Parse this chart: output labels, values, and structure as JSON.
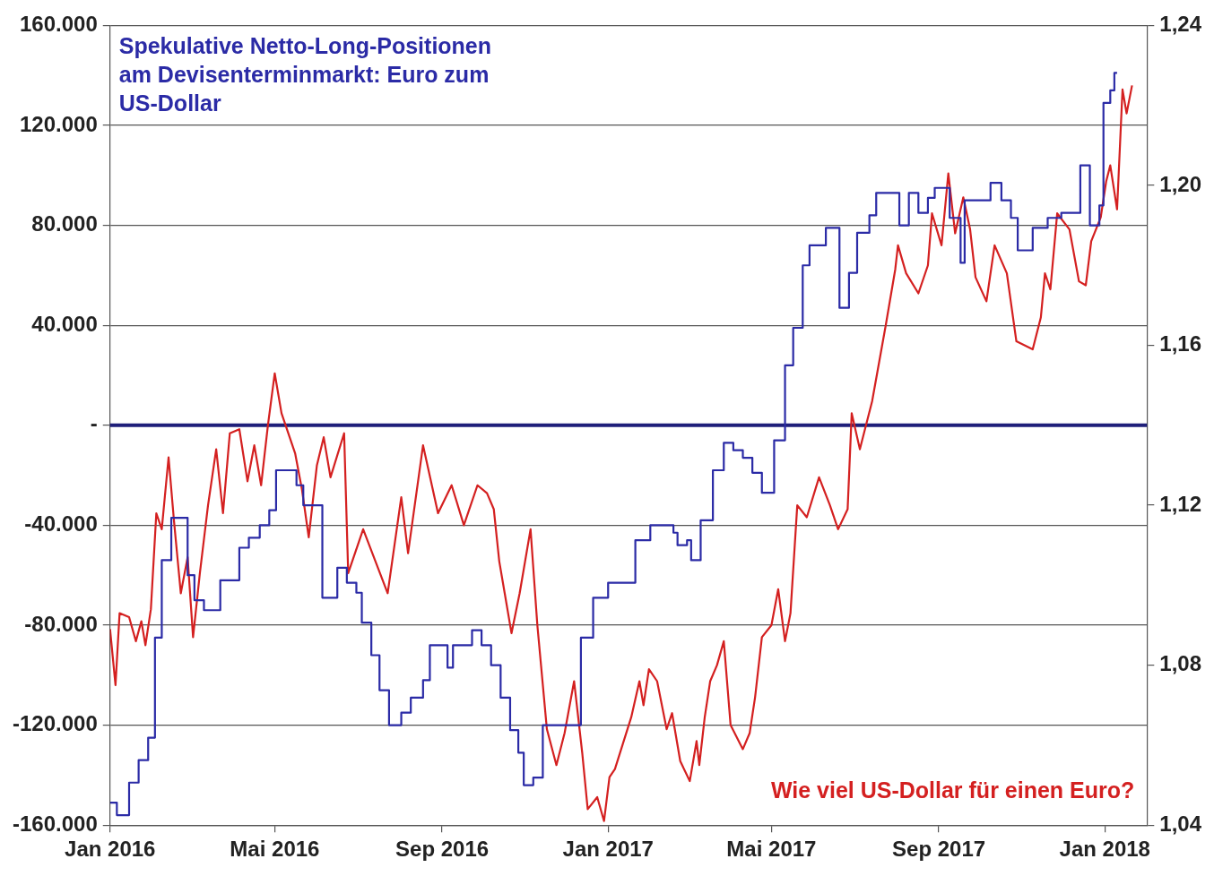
{
  "chart_data": {
    "type": "line",
    "xlim": [
      "2016-01-01",
      "2018-02-01"
    ],
    "xticks": [
      {
        "value": "2016-01-01",
        "label": "Jan 2016"
      },
      {
        "value": "2016-05-01",
        "label": "Mai 2016"
      },
      {
        "value": "2016-09-01",
        "label": "Sep 2016"
      },
      {
        "value": "2017-01-01",
        "label": "Jan 2017"
      },
      {
        "value": "2017-05-01",
        "label": "Mai 2017"
      },
      {
        "value": "2017-09-01",
        "label": "Sep 2017"
      },
      {
        "value": "2018-01-01",
        "label": "Jan 2018"
      }
    ],
    "ylim": [
      -160000,
      160000
    ],
    "yticks": [
      {
        "value": -160000,
        "label": "-160.000"
      },
      {
        "value": -120000,
        "label": "-120.000"
      },
      {
        "value": -80000,
        "label": "-80.000"
      },
      {
        "value": -40000,
        "label": "-40.000"
      },
      {
        "value": 0,
        "label": "-"
      },
      {
        "value": 40000,
        "label": "40.000"
      },
      {
        "value": 80000,
        "label": "80.000"
      },
      {
        "value": 120000,
        "label": "120.000"
      },
      {
        "value": 160000,
        "label": "160.000"
      }
    ],
    "y2lim": [
      1.04,
      1.24
    ],
    "y2ticks": [
      {
        "value": 1.04,
        "label": "1,04"
      },
      {
        "value": 1.08,
        "label": "1,08"
      },
      {
        "value": 1.12,
        "label": "1,12"
      },
      {
        "value": 1.16,
        "label": "1,16"
      },
      {
        "value": 1.2,
        "label": "1,20"
      },
      {
        "value": 1.24,
        "label": "1,24"
      }
    ],
    "grid": "y",
    "legend": false,
    "marker": "none",
    "line_style": "solid",
    "ref_lines": [
      {
        "axis": "y",
        "value": 0,
        "color": "#1f1f7a"
      }
    ],
    "series": [
      {
        "name": "Spekulative Netto-Long-Positionen am Devisenterminmarkt: Euro zum US-Dollar",
        "type": "step",
        "color": "#2b2ba6",
        "x": [
          "2016-01-01",
          "2016-01-06",
          "2016-01-15",
          "2016-01-22",
          "2016-01-29",
          "2016-02-03",
          "2016-02-08",
          "2016-02-15",
          "2016-02-27",
          "2016-03-03",
          "2016-03-10",
          "2016-03-22",
          "2016-04-05",
          "2016-04-12",
          "2016-04-20",
          "2016-04-27",
          "2016-05-02",
          "2016-05-17",
          "2016-05-22",
          "2016-06-05",
          "2016-06-16",
          "2016-06-23",
          "2016-06-30",
          "2016-07-04",
          "2016-07-11",
          "2016-07-17",
          "2016-07-24",
          "2016-08-02",
          "2016-08-09",
          "2016-08-18",
          "2016-08-23",
          "2016-09-05",
          "2016-09-09",
          "2016-09-23",
          "2016-09-30",
          "2016-10-07",
          "2016-10-14",
          "2016-10-21",
          "2016-10-27",
          "2016-10-31",
          "2016-11-07",
          "2016-11-14",
          "2016-12-12",
          "2016-12-21",
          "2017-01-01",
          "2017-01-21",
          "2017-02-01",
          "2017-02-18",
          "2017-02-21",
          "2017-02-28",
          "2017-03-03",
          "2017-03-10",
          "2017-03-19",
          "2017-03-27",
          "2017-04-03",
          "2017-04-10",
          "2017-04-17",
          "2017-04-24",
          "2017-05-03",
          "2017-05-11",
          "2017-05-17",
          "2017-05-24",
          "2017-05-29",
          "2017-06-10",
          "2017-06-20",
          "2017-06-27",
          "2017-07-03",
          "2017-07-12",
          "2017-07-17",
          "2017-08-03",
          "2017-08-10",
          "2017-08-17",
          "2017-08-24",
          "2017-08-29",
          "2017-09-09",
          "2017-09-17",
          "2017-09-20",
          "2017-10-09",
          "2017-10-17",
          "2017-10-24",
          "2017-10-29",
          "2017-11-09",
          "2017-11-20",
          "2017-11-30",
          "2017-12-14",
          "2017-12-21",
          "2017-12-28",
          "2017-12-31",
          "2018-01-05",
          "2018-01-08",
          "2018-01-10"
        ],
        "values": [
          -151000,
          -156000,
          -143000,
          -134000,
          -125000,
          -85000,
          -54000,
          -37000,
          -60000,
          -70000,
          -74000,
          -62000,
          -49000,
          -45000,
          -40000,
          -34000,
          -18000,
          -24000,
          -32000,
          -69000,
          -57000,
          -63000,
          -67000,
          -79000,
          -92000,
          -106000,
          -120000,
          -115000,
          -109000,
          -102000,
          -88000,
          -97000,
          -88000,
          -82000,
          -88000,
          -96000,
          -109000,
          -122000,
          -131000,
          -144000,
          -141000,
          -120000,
          -85000,
          -69000,
          -63000,
          -46000,
          -40000,
          -43000,
          -48000,
          -46000,
          -54000,
          -38000,
          -18000,
          -7000,
          -10000,
          -13000,
          -19000,
          -27000,
          -6000,
          24000,
          39000,
          64000,
          72000,
          79000,
          47000,
          61000,
          77000,
          84000,
          93000,
          80000,
          93000,
          85000,
          91000,
          95000,
          83000,
          65000,
          90000,
          97000,
          90000,
          83000,
          70000,
          79000,
          83000,
          85000,
          104000,
          80000,
          88000,
          129000,
          134000,
          141000,
          141000
        ]
      },
      {
        "name": "Wie viel US-Dollar für einen Euro?",
        "type": "line",
        "axis": "y2",
        "color": "#d42020",
        "x": [
          "2016-01-01",
          "2016-01-05",
          "2016-01-08",
          "2016-01-15",
          "2016-01-20",
          "2016-01-24",
          "2016-01-27",
          "2016-01-31",
          "2016-02-04",
          "2016-02-08",
          "2016-02-13",
          "2016-02-17",
          "2016-02-22",
          "2016-02-27",
          "2016-03-02",
          "2016-03-07",
          "2016-03-13",
          "2016-03-19",
          "2016-03-24",
          "2016-03-29",
          "2016-04-05",
          "2016-04-11",
          "2016-04-16",
          "2016-04-21",
          "2016-04-26",
          "2016-05-01",
          "2016-05-06",
          "2016-05-16",
          "2016-05-21",
          "2016-05-26",
          "2016-06-01",
          "2016-06-06",
          "2016-06-11",
          "2016-06-21",
          "2016-06-24",
          "2016-07-05",
          "2016-07-14",
          "2016-07-23",
          "2016-08-02",
          "2016-08-07",
          "2016-08-18",
          "2016-08-29",
          "2016-09-08",
          "2016-09-17",
          "2016-09-27",
          "2016-10-04",
          "2016-10-09",
          "2016-10-13",
          "2016-10-17",
          "2016-10-22",
          "2016-10-28",
          "2016-11-05",
          "2016-11-10",
          "2016-11-17",
          "2016-11-24",
          "2016-11-30",
          "2016-12-07",
          "2016-12-13",
          "2016-12-17",
          "2016-12-24",
          "2016-12-29",
          "2017-01-02",
          "2017-01-06",
          "2017-01-18",
          "2017-01-24",
          "2017-01-27",
          "2017-01-31",
          "2017-02-06",
          "2017-02-13",
          "2017-02-17",
          "2017-02-23",
          "2017-03-02",
          "2017-03-07",
          "2017-03-09",
          "2017-03-13",
          "2017-03-17",
          "2017-03-22",
          "2017-03-27",
          "2017-04-01",
          "2017-04-10",
          "2017-04-15",
          "2017-04-19",
          "2017-04-24",
          "2017-05-01",
          "2017-05-06",
          "2017-05-11",
          "2017-05-15",
          "2017-05-20",
          "2017-05-27",
          "2017-06-05",
          "2017-06-13",
          "2017-06-19",
          "2017-06-26",
          "2017-06-29",
          "2017-07-05",
          "2017-07-14",
          "2017-07-24",
          "2017-07-31",
          "2017-08-02",
          "2017-08-08",
          "2017-08-17",
          "2017-08-24",
          "2017-08-27",
          "2017-09-03",
          "2017-09-08",
          "2017-09-13",
          "2017-09-19",
          "2017-09-24",
          "2017-09-28",
          "2017-10-06",
          "2017-10-12",
          "2017-10-21",
          "2017-10-28",
          "2017-11-09",
          "2017-11-15",
          "2017-11-18",
          "2017-11-22",
          "2017-11-27",
          "2017-12-06",
          "2017-12-13",
          "2017-12-18",
          "2017-12-22",
          "2017-12-29",
          "2018-01-02",
          "2018-01-05",
          "2018-01-10",
          "2018-01-14",
          "2018-01-17",
          "2018-01-21"
        ],
        "values": [
          1.089,
          1.075,
          1.093,
          1.092,
          1.086,
          1.091,
          1.085,
          1.094,
          1.118,
          1.114,
          1.132,
          1.116,
          1.098,
          1.107,
          1.087,
          1.103,
          1.12,
          1.134,
          1.118,
          1.138,
          1.139,
          1.126,
          1.135,
          1.125,
          1.14,
          1.153,
          1.143,
          1.133,
          1.124,
          1.112,
          1.13,
          1.137,
          1.127,
          1.138,
          1.103,
          1.114,
          1.106,
          1.098,
          1.122,
          1.108,
          1.135,
          1.118,
          1.125,
          1.115,
          1.125,
          1.123,
          1.119,
          1.106,
          1.098,
          1.088,
          1.098,
          1.114,
          1.09,
          1.064,
          1.055,
          1.063,
          1.076,
          1.058,
          1.044,
          1.047,
          1.041,
          1.052,
          1.054,
          1.067,
          1.076,
          1.07,
          1.079,
          1.076,
          1.064,
          1.068,
          1.056,
          1.051,
          1.061,
          1.055,
          1.067,
          1.076,
          1.08,
          1.086,
          1.065,
          1.059,
          1.063,
          1.072,
          1.087,
          1.09,
          1.099,
          1.086,
          1.093,
          1.12,
          1.117,
          1.127,
          1.12,
          1.114,
          1.119,
          1.143,
          1.134,
          1.146,
          1.165,
          1.179,
          1.185,
          1.178,
          1.173,
          1.18,
          1.193,
          1.185,
          1.203,
          1.188,
          1.197,
          1.189,
          1.177,
          1.171,
          1.185,
          1.178,
          1.161,
          1.159,
          1.167,
          1.178,
          1.174,
          1.193,
          1.189,
          1.176,
          1.175,
          1.186,
          1.192,
          1.201,
          1.205,
          1.194,
          1.224,
          1.218,
          1.225
        ]
      }
    ]
  }
}
